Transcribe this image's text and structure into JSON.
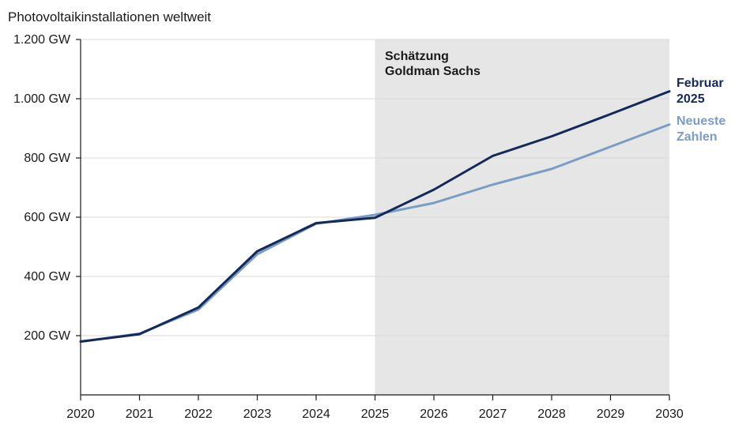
{
  "chart_data": {
    "type": "line",
    "title": "Photovoltaikinstallationen weltweit",
    "xlabel": "",
    "ylabel": "",
    "x": [
      2020,
      2021,
      2022,
      2023,
      2024,
      2025,
      2026,
      2027,
      2028,
      2029,
      2030
    ],
    "ylim": [
      0,
      1200
    ],
    "xlim": [
      2020,
      2030
    ],
    "yticks": [
      200,
      400,
      600,
      800,
      1000,
      1200
    ],
    "ytick_labels": [
      "200 GW",
      "400 GW",
      "600 GW",
      "800 GW",
      "1.000 GW",
      "1.200 GW"
    ],
    "xtick_labels": [
      "2020",
      "2021",
      "2022",
      "2023",
      "2024",
      "2025",
      "2026",
      "2027",
      "2028",
      "2029",
      "2030"
    ],
    "grid": true,
    "shaded_region": {
      "x_from": 2025,
      "x_to": 2030,
      "label_line1": "Schätzung",
      "label_line2": "Goldman Sachs",
      "color": "#e6e6e6"
    },
    "series": [
      {
        "name_line1": "Februar",
        "name_line2": "2025",
        "color": "#14295a",
        "values": [
          180,
          205,
          295,
          485,
          580,
          598,
          693,
          807,
          873,
          948,
          1025
        ]
      },
      {
        "name_line1": "Neueste",
        "name_line2": "Zahlen",
        "color": "#7b9cc6",
        "values": [
          180,
          207,
          288,
          475,
          578,
          608,
          648,
          710,
          763,
          838,
          913
        ]
      }
    ]
  }
}
